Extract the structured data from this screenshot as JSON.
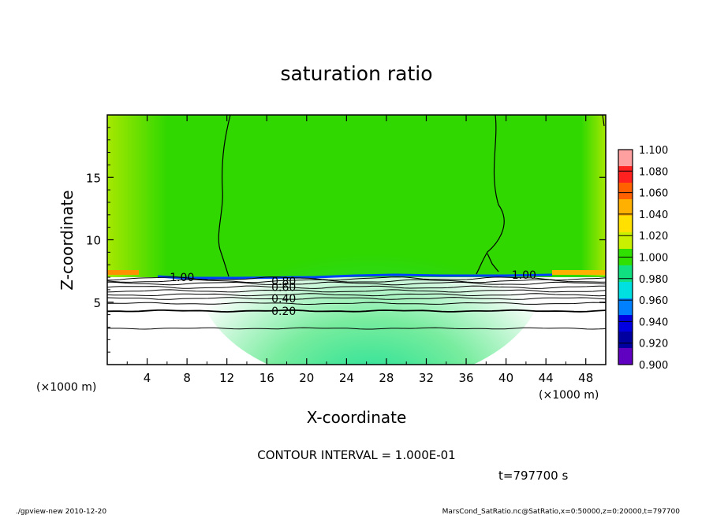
{
  "chart_data": {
    "type": "heatmap",
    "title": "saturation ratio",
    "xlabel": "X-coordinate",
    "ylabel": "Z-coordinate",
    "x_unit_left": "(×1000 m)",
    "x_unit_right": "(×1000 m)",
    "xlim": [
      0,
      50
    ],
    "ylim": [
      0,
      20
    ],
    "x_ticks": [
      4,
      8,
      12,
      16,
      20,
      24,
      28,
      32,
      36,
      40,
      44,
      48
    ],
    "y_ticks": [
      5,
      10,
      15
    ],
    "contour_interval_text": "CONTOUR INTERVAL = 1.000E-01",
    "time_text": "t=797700 s",
    "footer_left": "./gpview-new   2010-12-20",
    "footer_right": "MarsCond_SatRatio.nc@SatRatio,x=0:50000,z=0:20000,t=797700",
    "colorbar": {
      "levels": [
        1.1,
        1.08,
        1.06,
        1.04,
        1.02,
        1.0,
        0.98,
        0.96,
        0.94,
        0.92,
        0.9
      ],
      "labels": [
        "1.100",
        "1.080",
        "1.060",
        "1.040",
        "1.020",
        "1.000",
        "0.980",
        "0.960",
        "0.940",
        "0.920",
        "0.900"
      ],
      "colors": [
        "#ffa0a0",
        "#ff2020",
        "#ff6000",
        "#ffb000",
        "#ffe000",
        "#c8f000",
        "#30e000",
        "#10e080",
        "#00e0e0",
        "#0080ff",
        "#0000e0",
        "#0000a0",
        "#6000c0"
      ]
    },
    "contour_labels": [
      {
        "text": "1.00",
        "x": 7.5,
        "z": 7.0
      },
      {
        "text": "1.00",
        "x": 41.8,
        "z": 7.2
      },
      {
        "text": "0.80",
        "x": 17.7,
        "z": 6.7
      },
      {
        "text": "0.60",
        "x": 17.7,
        "z": 6.2
      },
      {
        "text": "0.40",
        "x": 17.7,
        "z": 5.3
      },
      {
        "text": "0.20",
        "x": 17.7,
        "z": 4.3
      }
    ],
    "contour_lines_z": [
      2.9,
      4.3,
      4.9,
      5.3,
      5.6,
      5.9,
      6.2,
      6.5,
      6.7,
      6.9
    ],
    "saturation_boundary_z": 7.0
  }
}
